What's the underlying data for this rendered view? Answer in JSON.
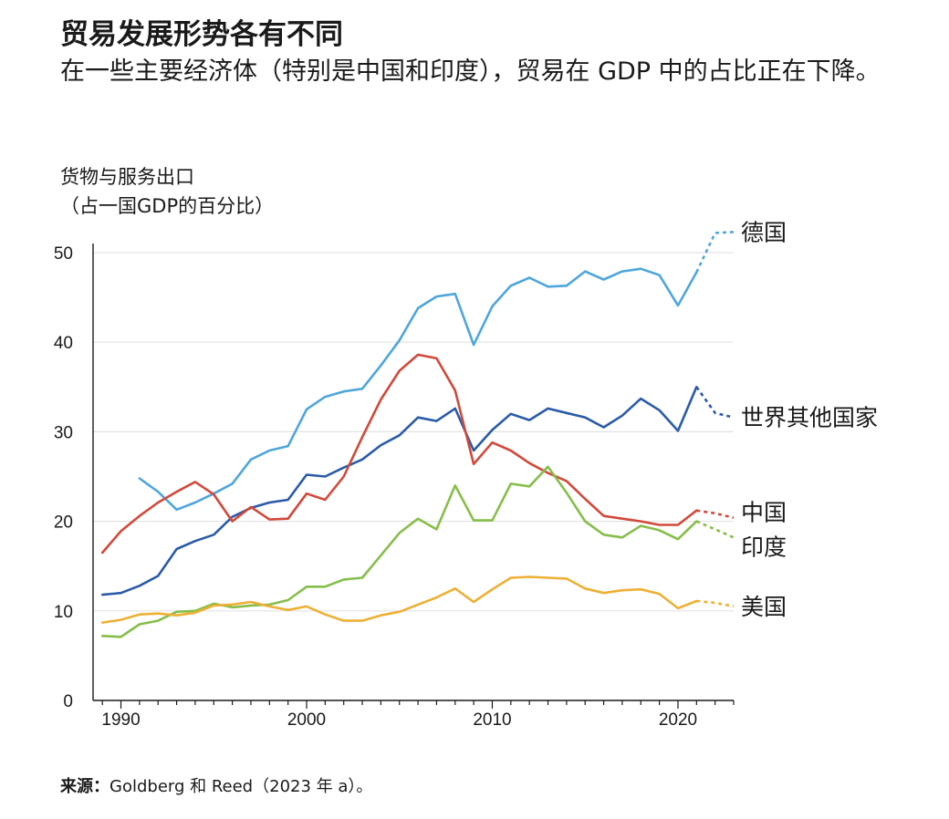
{
  "title": "贸易发展形势各有不同",
  "subtitle": "在一些主要经济体（特别是中国和印度），贸易在 GDP 中的占比正在下降。",
  "source": {
    "label": "来源：",
    "text": "Goldberg 和 Reed（2023 年 a）。"
  },
  "chart_data": {
    "type": "line",
    "ytitle": "货物与服务出口",
    "yunit": "（占一国GDP的百分比）",
    "xlim": [
      1988.5,
      2023
    ],
    "ylim": [
      0,
      50
    ],
    "yticks": [
      0,
      10,
      20,
      30,
      40,
      50
    ],
    "xticks": [
      1990,
      2000,
      2010,
      2020
    ],
    "grid": true,
    "projection_style": "dashed",
    "series": [
      {
        "name": "德国",
        "color": "#4ea6dc",
        "x": [
          1991,
          1992,
          1993,
          1994,
          1995,
          1996,
          1997,
          1998,
          1999,
          2000,
          2001,
          2002,
          2003,
          2004,
          2005,
          2006,
          2007,
          2008,
          2009,
          2010,
          2011,
          2012,
          2013,
          2014,
          2015,
          2016,
          2017,
          2018,
          2019,
          2020,
          2021
        ],
        "y": [
          24.8,
          23.3,
          21.3,
          22.1,
          23.1,
          24.2,
          26.9,
          27.9,
          28.4,
          32.5,
          33.9,
          34.5,
          34.8,
          37.4,
          40.2,
          43.8,
          45.1,
          45.4,
          39.7,
          44.0,
          46.3,
          47.2,
          46.2,
          46.3,
          47.9,
          47.0,
          47.9,
          48.2,
          47.5,
          44.1,
          47.8
        ],
        "projection_x": [
          2021,
          2022,
          2023
        ],
        "projection_y": [
          47.8,
          52.2,
          52.3
        ]
      },
      {
        "name": "世界其他国家",
        "color": "#2a5ba8",
        "x": [
          1989,
          1990,
          1991,
          1992,
          1993,
          1994,
          1995,
          1996,
          1997,
          1998,
          1999,
          2000,
          2001,
          2002,
          2003,
          2004,
          2005,
          2006,
          2007,
          2008,
          2009,
          2010,
          2011,
          2012,
          2013,
          2014,
          2015,
          2016,
          2017,
          2018,
          2019,
          2020,
          2021
        ],
        "y": [
          11.8,
          12.0,
          12.8,
          13.9,
          16.9,
          17.8,
          18.5,
          20.5,
          21.5,
          22.1,
          22.4,
          25.2,
          25.0,
          26.0,
          26.9,
          28.5,
          29.6,
          31.6,
          31.2,
          32.6,
          27.9,
          30.2,
          32.0,
          31.3,
          32.6,
          32.1,
          31.6,
          30.5,
          31.8,
          33.7,
          32.4,
          30.1,
          35.0
        ],
        "projection_x": [
          2021,
          2022,
          2023
        ],
        "projection_y": [
          35.0,
          32.1,
          31.6
        ]
      },
      {
        "name": "中国",
        "color": "#d2493a",
        "x": [
          1989,
          1990,
          1991,
          1992,
          1993,
          1994,
          1995,
          1996,
          1997,
          1998,
          1999,
          2000,
          2001,
          2002,
          2003,
          2004,
          2005,
          2006,
          2007,
          2008,
          2009,
          2010,
          2011,
          2012,
          2013,
          2014,
          2015,
          2016,
          2017,
          2018,
          2019,
          2020,
          2021
        ],
        "y": [
          16.5,
          18.9,
          20.6,
          22.1,
          23.3,
          24.4,
          23.0,
          20.0,
          21.6,
          20.2,
          20.3,
          23.1,
          22.4,
          25.0,
          29.4,
          33.6,
          36.8,
          38.6,
          38.2,
          34.6,
          26.4,
          28.8,
          27.9,
          26.5,
          25.4,
          24.5,
          22.5,
          20.6,
          20.3,
          20.0,
          19.6,
          19.6,
          21.2
        ],
        "projection_x": [
          2021,
          2022,
          2023
        ],
        "projection_y": [
          21.2,
          20.9,
          20.4
        ]
      },
      {
        "name": "印度",
        "color": "#86be4a",
        "x": [
          1989,
          1990,
          1991,
          1992,
          1993,
          1994,
          1995,
          1996,
          1997,
          1998,
          1999,
          2000,
          2001,
          2002,
          2003,
          2004,
          2005,
          2006,
          2007,
          2008,
          2009,
          2010,
          2011,
          2012,
          2013,
          2014,
          2015,
          2016,
          2017,
          2018,
          2019,
          2020,
          2021
        ],
        "y": [
          7.2,
          7.1,
          8.5,
          8.9,
          9.9,
          10.0,
          10.8,
          10.4,
          10.6,
          10.7,
          11.2,
          12.7,
          12.7,
          13.5,
          13.7,
          16.2,
          18.7,
          20.3,
          19.1,
          24.0,
          20.1,
          20.1,
          24.2,
          23.9,
          26.1,
          23.2,
          20.0,
          18.5,
          18.2,
          19.5,
          19.0,
          18.0,
          20.0
        ],
        "projection_x": [
          2021,
          2022,
          2023
        ],
        "projection_y": [
          20.0,
          19.1,
          18.2
        ]
      },
      {
        "name": "美国",
        "color": "#edb035",
        "x": [
          1989,
          1990,
          1991,
          1992,
          1993,
          1994,
          1995,
          1996,
          1997,
          1998,
          1999,
          2000,
          2001,
          2002,
          2003,
          2004,
          2005,
          2006,
          2007,
          2008,
          2009,
          2010,
          2011,
          2012,
          2013,
          2014,
          2015,
          2016,
          2017,
          2018,
          2019,
          2020,
          2021
        ],
        "y": [
          8.7,
          9.0,
          9.6,
          9.7,
          9.5,
          9.8,
          10.6,
          10.7,
          11.0,
          10.5,
          10.1,
          10.5,
          9.6,
          8.9,
          8.9,
          9.5,
          9.9,
          10.7,
          11.5,
          12.5,
          11.0,
          12.4,
          13.7,
          13.8,
          13.7,
          13.6,
          12.5,
          12.0,
          12.3,
          12.4,
          11.9,
          10.3,
          11.1
        ],
        "projection_x": [
          2021,
          2022,
          2023
        ],
        "projection_y": [
          11.1,
          10.9,
          10.5
        ]
      }
    ]
  }
}
